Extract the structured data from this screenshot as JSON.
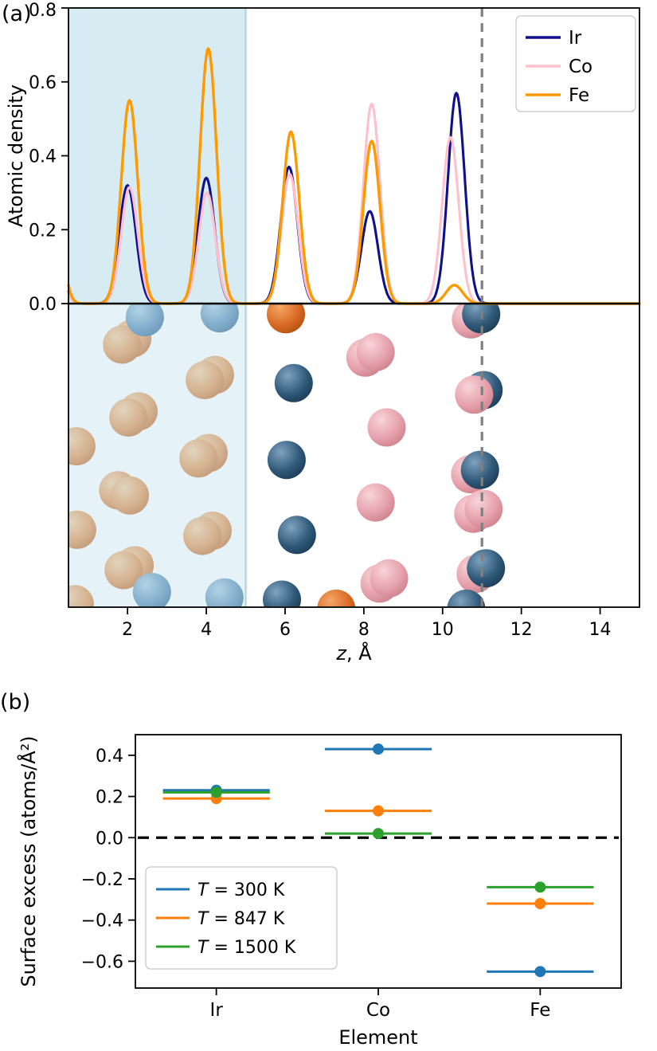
{
  "panels": {
    "a_label": "(a)",
    "b_label": "(b)"
  },
  "chart_data": [
    {
      "id": "density",
      "type": "line",
      "title": "",
      "xlabel": "z, Å",
      "ylabel": "Atomic density",
      "xlim": [
        0.5,
        15.0
      ],
      "ylim": [
        0.0,
        0.8
      ],
      "xticks": [
        2,
        4,
        6,
        8,
        10,
        12,
        14
      ],
      "yticks": [
        0.0,
        0.2,
        0.4,
        0.6,
        0.8
      ],
      "grid": false,
      "legend_position": "upper right",
      "shaded_region": {
        "x0": 0.5,
        "x1": 5.0,
        "color": "#add8e6",
        "opacity": 0.5
      },
      "dashed_vline": {
        "x": 11.0,
        "color": "#808080"
      },
      "sigma": 0.21,
      "series": [
        {
          "name": "Ir",
          "color": "#10108c",
          "peaks": [
            [
              0.05,
              0.32
            ],
            [
              2.0,
              0.32
            ],
            [
              4.0,
              0.34
            ],
            [
              6.1,
              0.37
            ],
            [
              8.15,
              0.25
            ],
            [
              10.35,
              0.57
            ]
          ]
        },
        {
          "name": "Co",
          "color": "#ffc0cb",
          "peaks": [
            [
              0.05,
              0.3
            ],
            [
              2.05,
              0.315
            ],
            [
              4.02,
              0.3
            ],
            [
              6.12,
              0.35
            ],
            [
              8.2,
              0.54
            ],
            [
              10.2,
              0.45
            ]
          ]
        },
        {
          "name": "Fe",
          "color": "#fd9a02",
          "peaks": [
            [
              0.05,
              0.5
            ],
            [
              2.05,
              0.55
            ],
            [
              4.05,
              0.69
            ],
            [
              6.15,
              0.465
            ],
            [
              8.2,
              0.44
            ],
            [
              10.3,
              0.05
            ]
          ]
        }
      ]
    },
    {
      "id": "structure",
      "type": "structure-render",
      "sphere_colors": {
        "tan": [
          "#f9d3ab",
          "#e8a268",
          "#c07038"
        ],
        "steel": [
          "#b6d2e4",
          "#6f9cc0",
          "#3f6c94"
        ],
        "navy": [
          "#7fa3bf",
          "#2f5878",
          "#122f49"
        ],
        "pink": [
          "#f9d4d9",
          "#e5a0ab",
          "#c4747f"
        ],
        "dorange": [
          "#f5a869",
          "#d96a24",
          "#a04508"
        ]
      },
      "atoms": [
        {
          "c": "tan",
          "x": 0.7,
          "yf": 0.47
        },
        {
          "c": "tan",
          "x": 0.72,
          "yf": 0.745
        },
        {
          "c": "tan",
          "x": 0.66,
          "yf": 0.99
        },
        {
          "c": "tan",
          "x": 2.12,
          "yf": 0.115
        },
        {
          "c": "tan",
          "x": 1.86,
          "yf": 0.135
        },
        {
          "c": "steel",
          "x": 2.44,
          "yf": 0.045
        },
        {
          "c": "tan",
          "x": 2.28,
          "yf": 0.355
        },
        {
          "c": "tan",
          "x": 2.02,
          "yf": 0.375
        },
        {
          "c": "tan",
          "x": 1.76,
          "yf": 0.615
        },
        {
          "c": "tan",
          "x": 2.06,
          "yf": 0.632
        },
        {
          "c": "tan",
          "x": 2.18,
          "yf": 0.862
        },
        {
          "c": "tan",
          "x": 1.9,
          "yf": 0.878
        },
        {
          "c": "steel",
          "x": 2.62,
          "yf": 0.95
        },
        {
          "c": "steel",
          "x": 4.34,
          "yf": 0.032
        },
        {
          "c": "tan",
          "x": 4.22,
          "yf": 0.235
        },
        {
          "c": "tan",
          "x": 3.96,
          "yf": 0.252
        },
        {
          "c": "tan",
          "x": 4.06,
          "yf": 0.492
        },
        {
          "c": "tan",
          "x": 3.8,
          "yf": 0.51
        },
        {
          "c": "tan",
          "x": 4.16,
          "yf": 0.748
        },
        {
          "c": "tan",
          "x": 3.9,
          "yf": 0.765
        },
        {
          "c": "steel",
          "x": 4.46,
          "yf": 0.968
        },
        {
          "c": "dorange",
          "x": 6.02,
          "yf": 0.035
        },
        {
          "c": "navy",
          "x": 6.22,
          "yf": 0.262
        },
        {
          "c": "navy",
          "x": 6.04,
          "yf": 0.515
        },
        {
          "c": "navy",
          "x": 6.3,
          "yf": 0.762
        },
        {
          "c": "navy",
          "x": 5.92,
          "yf": 0.975
        },
        {
          "c": "dorange",
          "x": 7.3,
          "yf": 1.005
        },
        {
          "c": "pink",
          "x": 8.04,
          "yf": 0.178
        },
        {
          "c": "pink",
          "x": 8.3,
          "yf": 0.16
        },
        {
          "c": "pink",
          "x": 8.58,
          "yf": 0.408
        },
        {
          "c": "pink",
          "x": 8.3,
          "yf": 0.655
        },
        {
          "c": "pink",
          "x": 8.4,
          "yf": 0.922
        },
        {
          "c": "pink",
          "x": 8.64,
          "yf": 0.905
        },
        {
          "c": "pink",
          "x": 10.72,
          "yf": 0.052
        },
        {
          "c": "navy",
          "x": 10.98,
          "yf": 0.035
        },
        {
          "c": "navy",
          "x": 11.04,
          "yf": 0.285
        },
        {
          "c": "pink",
          "x": 10.8,
          "yf": 0.3
        },
        {
          "c": "pink",
          "x": 10.7,
          "yf": 0.562
        },
        {
          "c": "navy",
          "x": 10.95,
          "yf": 0.548
        },
        {
          "c": "pink",
          "x": 10.78,
          "yf": 0.692
        },
        {
          "c": "pink",
          "x": 11.04,
          "yf": 0.676
        },
        {
          "c": "pink",
          "x": 10.84,
          "yf": 0.89
        },
        {
          "c": "navy",
          "x": 11.1,
          "yf": 0.872
        },
        {
          "c": "navy",
          "x": 10.6,
          "yf": 1.005
        }
      ]
    },
    {
      "id": "surface_excess",
      "type": "scatter",
      "title": "",
      "xlabel": "Element",
      "ylabel": "Surface excess (atoms/Å²)",
      "categories": [
        "Ir",
        "Co",
        "Fe"
      ],
      "ylim": [
        -0.73,
        0.5
      ],
      "yticks": [
        -0.6,
        -0.4,
        -0.2,
        0.0,
        0.2,
        0.4
      ],
      "zero_line": {
        "y": 0.0,
        "style": "dashed",
        "color": "#000000"
      },
      "xerr": 0.33,
      "legend_position": "lower left",
      "series": [
        {
          "name": "T = 300 K",
          "color": "#1f77b4",
          "values": [
            0.23,
            0.43,
            -0.65
          ]
        },
        {
          "name": "T = 847 K",
          "color": "#ff7f0e",
          "values": [
            0.19,
            0.13,
            -0.32
          ]
        },
        {
          "name": "T = 1500 K",
          "color": "#2ca02c",
          "values": [
            0.22,
            0.02,
            -0.24
          ]
        }
      ]
    }
  ]
}
